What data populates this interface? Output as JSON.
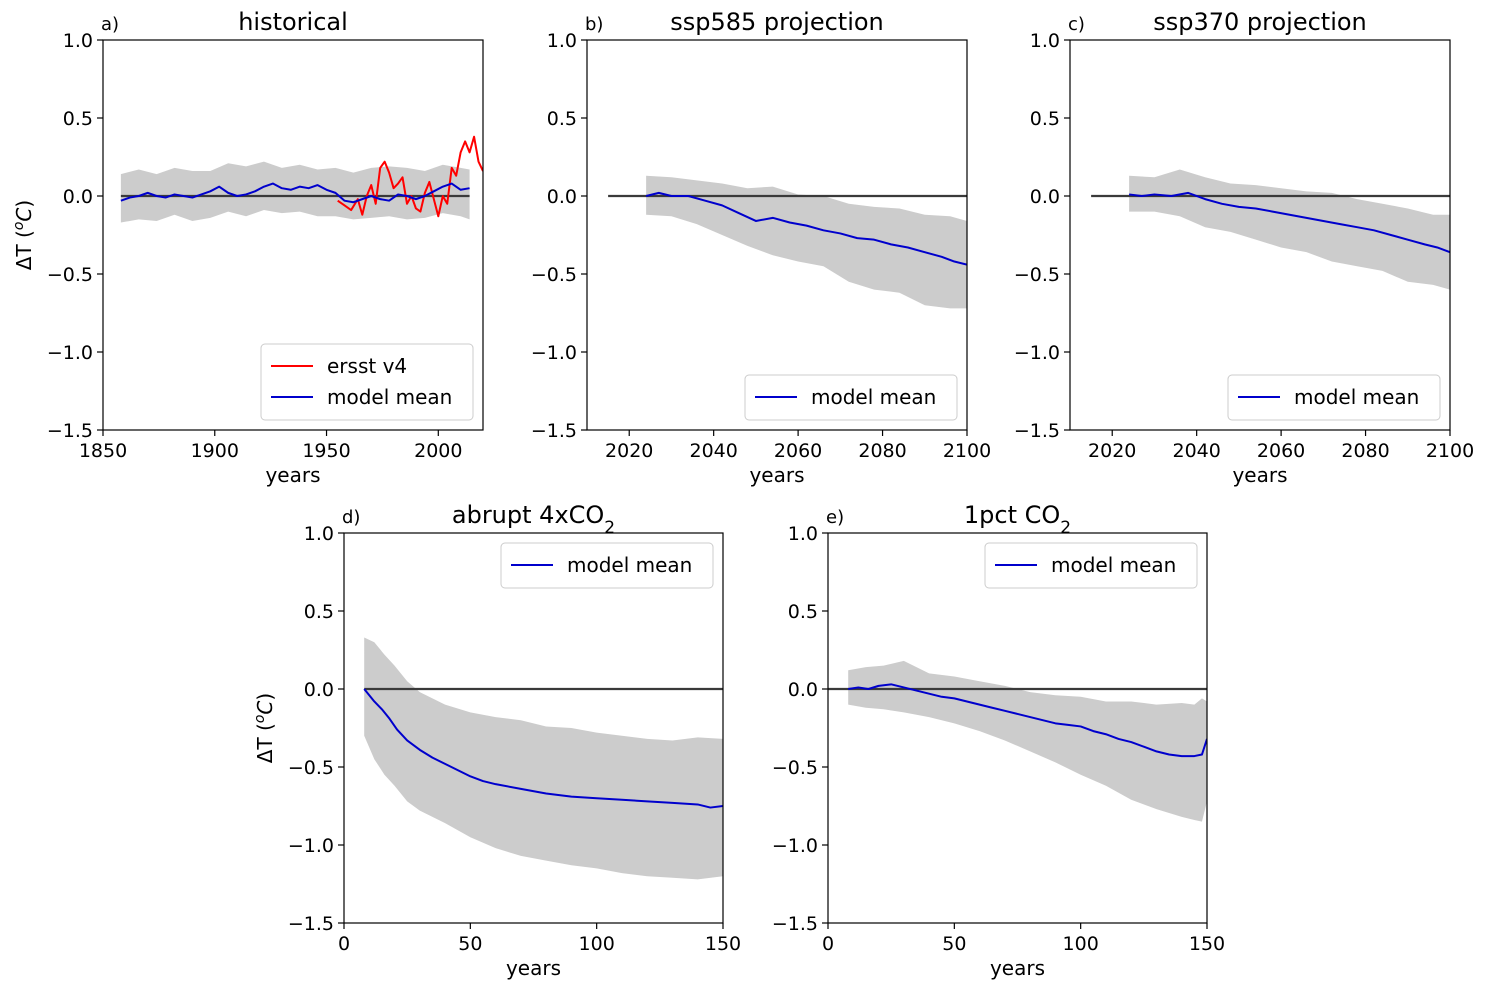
{
  "chart_data": [
    {
      "type": "line",
      "panel_label": "a)",
      "title": "historical",
      "xlabel": "years",
      "ylabel": "ΔT (°C)",
      "xlim": [
        1850,
        2020
      ],
      "ylim": [
        -1.5,
        1.0
      ],
      "xticks": [
        1850,
        1900,
        1950,
        2000
      ],
      "xtick_labels": [
        "1850",
        "1900",
        "1950",
        "2000"
      ],
      "yticks": [
        -1.5,
        -1.0,
        -0.5,
        0.0,
        0.5,
        1.0
      ],
      "ytick_labels": [
        "−1.5",
        "−1.0",
        "−0.5",
        "0.0",
        "0.5",
        "1.0"
      ],
      "legend_position": "lower-right",
      "reference_line": {
        "y": 0,
        "x": [
          1858,
          2014
        ],
        "color": "#3a3a3a"
      },
      "band": {
        "color": "#cccccc",
        "x": [
          1858,
          1866,
          1874,
          1882,
          1890,
          1898,
          1906,
          1914,
          1922,
          1930,
          1938,
          1946,
          1954,
          1962,
          1970,
          1978,
          1986,
          1994,
          2002,
          2010,
          2014
        ],
        "upper": [
          0.14,
          0.17,
          0.14,
          0.18,
          0.16,
          0.16,
          0.21,
          0.19,
          0.22,
          0.18,
          0.2,
          0.17,
          0.18,
          0.15,
          0.18,
          0.19,
          0.18,
          0.16,
          0.2,
          0.18,
          0.17
        ],
        "lower": [
          -0.17,
          -0.15,
          -0.16,
          -0.12,
          -0.16,
          -0.14,
          -0.1,
          -0.13,
          -0.09,
          -0.11,
          -0.1,
          -0.13,
          -0.13,
          -0.15,
          -0.14,
          -0.13,
          -0.15,
          -0.14,
          -0.11,
          -0.13,
          -0.15
        ]
      },
      "series": [
        {
          "name": "ersst v4",
          "color": "#ff0000",
          "x": [
            1955,
            1958,
            1961,
            1964,
            1966,
            1968,
            1970,
            1972,
            1974,
            1976,
            1978,
            1980,
            1982,
            1984,
            1986,
            1988,
            1990,
            1992,
            1994,
            1996,
            1998,
            2000,
            2002,
            2004,
            2006,
            2008,
            2010,
            2012,
            2014,
            2016,
            2018,
            2020
          ],
          "y": [
            -0.03,
            -0.06,
            -0.09,
            -0.02,
            -0.12,
            0.0,
            0.07,
            -0.05,
            0.18,
            0.22,
            0.15,
            0.05,
            0.08,
            0.12,
            -0.05,
            0.0,
            -0.08,
            -0.1,
            0.02,
            0.09,
            -0.02,
            -0.13,
            0.0,
            -0.05,
            0.18,
            0.13,
            0.28,
            0.35,
            0.28,
            0.38,
            0.22,
            0.16
          ]
        },
        {
          "name": "model mean",
          "color": "#0000cc",
          "x": [
            1858,
            1862,
            1866,
            1870,
            1874,
            1878,
            1882,
            1886,
            1890,
            1894,
            1898,
            1902,
            1906,
            1910,
            1914,
            1918,
            1922,
            1926,
            1930,
            1934,
            1938,
            1942,
            1946,
            1950,
            1954,
            1958,
            1962,
            1966,
            1970,
            1974,
            1978,
            1982,
            1986,
            1990,
            1994,
            1998,
            2002,
            2006,
            2010,
            2014
          ],
          "y": [
            -0.03,
            -0.01,
            0.0,
            0.02,
            0.0,
            -0.01,
            0.01,
            0.0,
            -0.01,
            0.01,
            0.03,
            0.06,
            0.02,
            0.0,
            0.01,
            0.03,
            0.06,
            0.08,
            0.05,
            0.04,
            0.06,
            0.05,
            0.07,
            0.04,
            0.02,
            -0.03,
            -0.04,
            -0.02,
            0.0,
            -0.02,
            -0.03,
            0.01,
            0.0,
            -0.02,
            0.0,
            0.03,
            0.06,
            0.08,
            0.04,
            0.05
          ]
        }
      ]
    },
    {
      "type": "line",
      "panel_label": "b)",
      "title": "ssp585 projection",
      "xlabel": "years",
      "ylabel": "",
      "xlim": [
        2010,
        2100
      ],
      "ylim": [
        -1.5,
        1.0
      ],
      "xticks": [
        2020,
        2040,
        2060,
        2080,
        2100
      ],
      "xtick_labels": [
        "2020",
        "2040",
        "2060",
        "2080",
        "2100"
      ],
      "yticks": [
        -1.5,
        -1.0,
        -0.5,
        0.0,
        0.5,
        1.0
      ],
      "ytick_labels": [
        "−1.5",
        "−1.0",
        "−0.5",
        "0.0",
        "0.5",
        "1.0"
      ],
      "legend_position": "lower-right",
      "reference_line": {
        "y": 0,
        "x": [
          2015,
          2100
        ],
        "color": "#3a3a3a"
      },
      "band": {
        "color": "#cccccc",
        "x": [
          2024,
          2030,
          2036,
          2042,
          2048,
          2054,
          2060,
          2066,
          2072,
          2078,
          2084,
          2090,
          2096,
          2100
        ],
        "upper": [
          0.13,
          0.12,
          0.1,
          0.08,
          0.05,
          0.06,
          0.01,
          0.0,
          -0.05,
          -0.07,
          -0.08,
          -0.12,
          -0.13,
          -0.16
        ],
        "lower": [
          -0.12,
          -0.13,
          -0.18,
          -0.25,
          -0.32,
          -0.38,
          -0.42,
          -0.45,
          -0.55,
          -0.6,
          -0.62,
          -0.7,
          -0.72,
          -0.72
        ]
      },
      "series": [
        {
          "name": "model mean",
          "color": "#0000cc",
          "x": [
            2024,
            2027,
            2030,
            2034,
            2038,
            2042,
            2046,
            2050,
            2054,
            2058,
            2062,
            2066,
            2070,
            2074,
            2078,
            2082,
            2086,
            2090,
            2094,
            2097,
            2100
          ],
          "y": [
            0.0,
            0.02,
            0.0,
            0.0,
            -0.03,
            -0.06,
            -0.11,
            -0.16,
            -0.14,
            -0.17,
            -0.19,
            -0.22,
            -0.24,
            -0.27,
            -0.28,
            -0.31,
            -0.33,
            -0.36,
            -0.39,
            -0.42,
            -0.44
          ]
        }
      ]
    },
    {
      "type": "line",
      "panel_label": "c)",
      "title": "ssp370 projection",
      "xlabel": "years",
      "ylabel": "",
      "xlim": [
        2010,
        2100
      ],
      "ylim": [
        -1.5,
        1.0
      ],
      "xticks": [
        2020,
        2040,
        2060,
        2080,
        2100
      ],
      "xtick_labels": [
        "2020",
        "2040",
        "2060",
        "2080",
        "2100"
      ],
      "yticks": [
        -1.5,
        -1.0,
        -0.5,
        0.0,
        0.5,
        1.0
      ],
      "ytick_labels": [
        "−1.5",
        "−1.0",
        "−0.5",
        "0.0",
        "0.5",
        "1.0"
      ],
      "legend_position": "lower-right",
      "reference_line": {
        "y": 0,
        "x": [
          2015,
          2100
        ],
        "color": "#3a3a3a"
      },
      "band": {
        "color": "#cccccc",
        "x": [
          2024,
          2030,
          2036,
          2042,
          2048,
          2054,
          2060,
          2066,
          2072,
          2078,
          2084,
          2090,
          2096,
          2100
        ],
        "upper": [
          0.13,
          0.12,
          0.17,
          0.12,
          0.08,
          0.07,
          0.05,
          0.03,
          0.02,
          -0.02,
          -0.05,
          -0.08,
          -0.12,
          -0.12
        ],
        "lower": [
          -0.1,
          -0.1,
          -0.13,
          -0.2,
          -0.23,
          -0.28,
          -0.33,
          -0.36,
          -0.42,
          -0.45,
          -0.48,
          -0.55,
          -0.57,
          -0.6
        ]
      },
      "series": [
        {
          "name": "model mean",
          "color": "#0000cc",
          "x": [
            2024,
            2027,
            2030,
            2034,
            2038,
            2042,
            2046,
            2050,
            2054,
            2058,
            2062,
            2066,
            2070,
            2074,
            2078,
            2082,
            2086,
            2090,
            2094,
            2097,
            2100
          ],
          "y": [
            0.01,
            0.0,
            0.01,
            0.0,
            0.02,
            -0.02,
            -0.05,
            -0.07,
            -0.08,
            -0.1,
            -0.12,
            -0.14,
            -0.16,
            -0.18,
            -0.2,
            -0.22,
            -0.25,
            -0.28,
            -0.31,
            -0.33,
            -0.36
          ]
        }
      ]
    },
    {
      "type": "line",
      "panel_label": "d)",
      "title": "abrupt 4xCO",
      "title_subscript": "2",
      "xlabel": "years",
      "ylabel": "ΔT (°C)",
      "xlim": [
        0,
        150
      ],
      "ylim": [
        -1.5,
        1.0
      ],
      "xticks": [
        0,
        50,
        100,
        150
      ],
      "xtick_labels": [
        "0",
        "50",
        "100",
        "150"
      ],
      "yticks": [
        -1.5,
        -1.0,
        -0.5,
        0.0,
        0.5,
        1.0
      ],
      "ytick_labels": [
        "−1.5",
        "−1.0",
        "−0.5",
        "0.0",
        "0.5",
        "1.0"
      ],
      "legend_position": "upper-right",
      "reference_line": {
        "y": 0,
        "x": [
          8,
          150
        ],
        "color": "#3a3a3a"
      },
      "band": {
        "color": "#cccccc",
        "x": [
          8,
          12,
          16,
          20,
          25,
          30,
          40,
          50,
          60,
          70,
          80,
          90,
          100,
          110,
          120,
          130,
          140,
          150
        ],
        "upper": [
          0.33,
          0.3,
          0.22,
          0.15,
          0.05,
          -0.02,
          -0.1,
          -0.15,
          -0.18,
          -0.2,
          -0.24,
          -0.25,
          -0.28,
          -0.3,
          -0.32,
          -0.33,
          -0.31,
          -0.32
        ],
        "lower": [
          -0.3,
          -0.45,
          -0.55,
          -0.62,
          -0.72,
          -0.78,
          -0.86,
          -0.95,
          -1.02,
          -1.07,
          -1.1,
          -1.13,
          -1.15,
          -1.18,
          -1.2,
          -1.21,
          -1.22,
          -1.2
        ]
      },
      "series": [
        {
          "name": "model mean",
          "color": "#0000cc",
          "x": [
            8,
            10,
            12,
            15,
            18,
            21,
            25,
            30,
            35,
            40,
            45,
            50,
            55,
            60,
            70,
            80,
            90,
            100,
            110,
            120,
            130,
            140,
            145,
            150
          ],
          "y": [
            0.0,
            -0.04,
            -0.08,
            -0.13,
            -0.19,
            -0.26,
            -0.33,
            -0.39,
            -0.44,
            -0.48,
            -0.52,
            -0.56,
            -0.59,
            -0.61,
            -0.64,
            -0.67,
            -0.69,
            -0.7,
            -0.71,
            -0.72,
            -0.73,
            -0.74,
            -0.76,
            -0.75
          ]
        }
      ]
    },
    {
      "type": "line",
      "panel_label": "e)",
      "title": "1pct CO",
      "title_subscript": "2",
      "xlabel": "years",
      "ylabel": "",
      "xlim": [
        0,
        150
      ],
      "ylim": [
        -1.5,
        1.0
      ],
      "xticks": [
        0,
        50,
        100,
        150
      ],
      "xtick_labels": [
        "0",
        "50",
        "100",
        "150"
      ],
      "yticks": [
        -1.5,
        -1.0,
        -0.5,
        0.0,
        0.5,
        1.0
      ],
      "ytick_labels": [
        "−1.5",
        "−1.0",
        "−0.5",
        "0.0",
        "0.5",
        "1.0"
      ],
      "legend_position": "upper-right",
      "reference_line": {
        "y": 0,
        "x": [
          0,
          150
        ],
        "color": "#3a3a3a"
      },
      "band": {
        "color": "#cccccc",
        "x": [
          8,
          15,
          22,
          30,
          40,
          50,
          60,
          70,
          80,
          90,
          100,
          110,
          120,
          130,
          140,
          145,
          148,
          150
        ],
        "upper": [
          0.12,
          0.14,
          0.15,
          0.18,
          0.1,
          0.08,
          0.05,
          0.02,
          -0.02,
          -0.04,
          -0.05,
          -0.08,
          -0.08,
          -0.1,
          -0.09,
          -0.1,
          -0.06,
          -0.08
        ],
        "lower": [
          -0.1,
          -0.12,
          -0.13,
          -0.15,
          -0.18,
          -0.22,
          -0.27,
          -0.33,
          -0.4,
          -0.47,
          -0.55,
          -0.62,
          -0.71,
          -0.77,
          -0.82,
          -0.84,
          -0.85,
          -0.72
        ]
      },
      "series": [
        {
          "name": "model mean",
          "color": "#0000cc",
          "x": [
            8,
            12,
            16,
            20,
            25,
            30,
            35,
            40,
            45,
            50,
            55,
            60,
            65,
            70,
            75,
            80,
            85,
            90,
            95,
            100,
            105,
            110,
            115,
            120,
            125,
            130,
            135,
            140,
            145,
            148,
            150
          ],
          "y": [
            0.0,
            0.01,
            0.0,
            0.02,
            0.03,
            0.01,
            -0.01,
            -0.03,
            -0.05,
            -0.06,
            -0.08,
            -0.1,
            -0.12,
            -0.14,
            -0.16,
            -0.18,
            -0.2,
            -0.22,
            -0.23,
            -0.24,
            -0.27,
            -0.29,
            -0.32,
            -0.34,
            -0.37,
            -0.4,
            -0.42,
            -0.43,
            -0.43,
            -0.42,
            -0.32
          ]
        }
      ]
    }
  ]
}
